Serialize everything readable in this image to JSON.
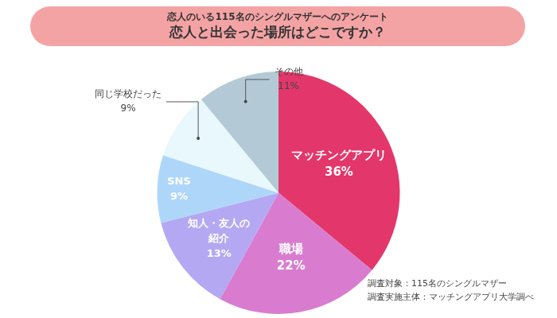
{
  "chart_data": {
    "type": "pie",
    "title": "恋人と出会った場所はどこですか？",
    "subtitle": "恋人のいる115名のシングルマザーへのアンケート",
    "categories": [
      "マッチングアプリ",
      "職場",
      "知人・友人の紹介",
      "SNS",
      "同じ学校だった",
      "その他"
    ],
    "values": [
      36,
      22,
      13,
      9,
      9,
      11
    ],
    "value_labels": [
      "36%",
      "22%",
      "13%",
      "9%",
      "9%",
      "11%"
    ],
    "colors": [
      "#e3376b",
      "#d97ccf",
      "#b5a8f2",
      "#aed6f9",
      "#e8f8fd",
      "#b3cad6"
    ],
    "data_labels": true,
    "annotations": [
      "調査対象：115名のシングルマザー",
      "調査実施主体：マッチングアプリ大学調べ"
    ]
  }
}
